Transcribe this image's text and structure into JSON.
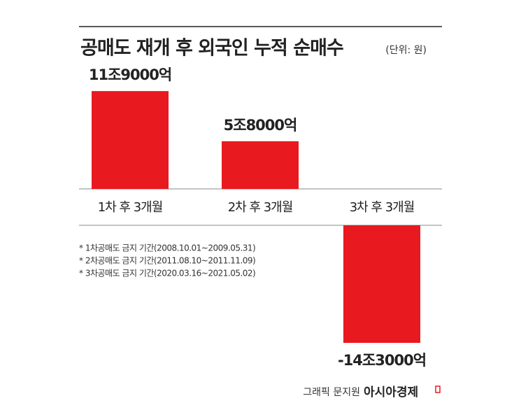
{
  "chart_data": {
    "type": "bar",
    "title": "공매도 재개 후 외국인 누적 순매수",
    "unit": "(단위: 원)",
    "categories": [
      "1차 후 3개월",
      "2차 후 3개월",
      "3차 후 3개월"
    ],
    "values": [
      11900000000000,
      5800000000000,
      -14300000000000
    ],
    "value_labels": [
      "11조9000억",
      "5조8000억",
      "-14조3000억"
    ],
    "color": "#e8191f",
    "notes": [
      "* 1차공매도 금지 기간(2008.10.01~2009.05.31)",
      "* 2차공매도 금지 기간(2011.08.10~2011.11.09)",
      "* 3차공매도 금지 기간(2020.03.16~2021.05.02)"
    ],
    "credit": "그래픽 문지원",
    "brand": "아시아경제"
  }
}
